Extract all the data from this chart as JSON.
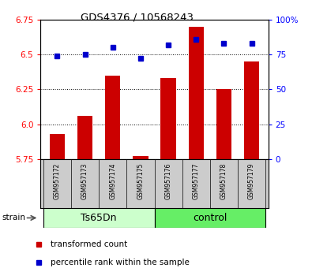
{
  "title": "GDS4376 / 10568243",
  "samples": [
    "GSM957172",
    "GSM957173",
    "GSM957174",
    "GSM957175",
    "GSM957176",
    "GSM957177",
    "GSM957178",
    "GSM957179"
  ],
  "red_values": [
    5.93,
    6.06,
    6.35,
    5.77,
    6.33,
    6.7,
    6.25,
    6.45
  ],
  "blue_values": [
    74,
    75,
    80,
    72,
    82,
    86,
    83,
    83
  ],
  "ylim_left": [
    5.75,
    6.75
  ],
  "ylim_right": [
    0,
    100
  ],
  "yticks_left": [
    5.75,
    6.0,
    6.25,
    6.5,
    6.75
  ],
  "yticks_right": [
    0,
    25,
    50,
    75,
    100
  ],
  "groups": [
    {
      "label": "Ts65Dn",
      "start": 0,
      "end": 3,
      "color": "#ccffcc"
    },
    {
      "label": "control",
      "start": 4,
      "end": 7,
      "color": "#66ee66"
    }
  ],
  "bar_color": "#cc0000",
  "dot_color": "#0000cc",
  "bar_bottom": 5.75,
  "bg_color": "#cccccc",
  "strain_label": "strain",
  "legend_items": [
    {
      "color": "#cc0000",
      "label": "transformed count"
    },
    {
      "color": "#0000cc",
      "label": "percentile rank within the sample"
    }
  ],
  "grid_lines": [
    6.0,
    6.25,
    6.5
  ]
}
